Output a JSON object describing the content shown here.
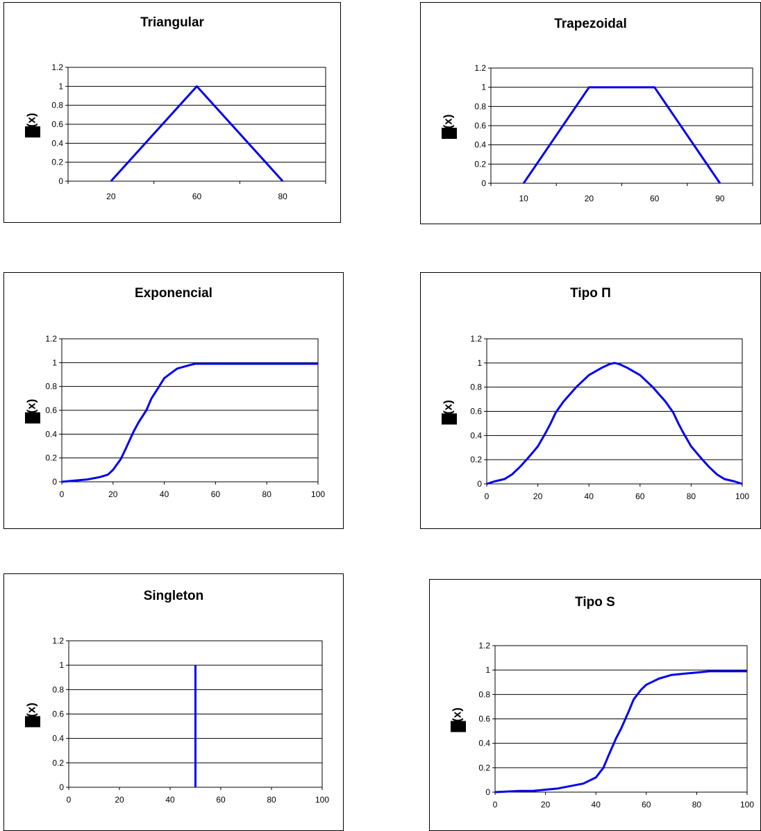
{
  "colors": {
    "line": "#0000ee",
    "frame": "#000000",
    "glyph_block": "#000000"
  },
  "chart_data": [
    {
      "type": "line",
      "title": "Triangular",
      "ylabel": "(x)",
      "ylabel_glyph": "filled-square-icon",
      "x_axis": "categorical",
      "categories": [
        "20",
        "60",
        "80"
      ],
      "y_ticks": [
        "0",
        "0.2",
        "0.4",
        "0.6",
        "0.8",
        "1",
        "1.2"
      ],
      "ylim": [
        0,
        1.2
      ],
      "grid": "horizontal",
      "series": [
        {
          "x_index": [
            0,
            1,
            2
          ],
          "y": [
            0,
            1,
            0
          ]
        }
      ]
    },
    {
      "type": "line",
      "title": "Trapezoidal",
      "ylabel": "(x)",
      "ylabel_glyph": "filled-square-icon",
      "x_axis": "categorical",
      "categories": [
        "10",
        "20",
        "60",
        "90"
      ],
      "y_ticks": [
        "0",
        "0.2",
        "0.4",
        "0.6",
        "0.8",
        "1",
        "1.2"
      ],
      "ylim": [
        0,
        1.2
      ],
      "grid": "horizontal",
      "series": [
        {
          "x_index": [
            0,
            1,
            2,
            3
          ],
          "y": [
            0,
            1,
            1,
            0
          ]
        }
      ]
    },
    {
      "type": "line",
      "title": "Exponencial",
      "ylabel": "(x)",
      "ylabel_glyph": "filled-square-icon",
      "x_axis": "numeric",
      "x_ticks": [
        "0",
        "20",
        "40",
        "60",
        "80",
        "100"
      ],
      "xlim": [
        0,
        100
      ],
      "y_ticks": [
        "0",
        "0.2",
        "0.4",
        "0.6",
        "0.8",
        "1",
        "1.2"
      ],
      "ylim": [
        0,
        1.2
      ],
      "grid": "horizontal",
      "series": [
        {
          "x": [
            0,
            5,
            10,
            15,
            18,
            20,
            23,
            25,
            28,
            30,
            33,
            35,
            38,
            40,
            45,
            50,
            52,
            55,
            60,
            70,
            80,
            90,
            100
          ],
          "y": [
            0,
            0.01,
            0.02,
            0.04,
            0.06,
            0.1,
            0.19,
            0.28,
            0.42,
            0.5,
            0.6,
            0.7,
            0.8,
            0.87,
            0.95,
            0.98,
            0.99,
            0.99,
            0.99,
            0.99,
            0.99,
            0.99,
            0.99
          ]
        }
      ]
    },
    {
      "type": "line",
      "title": "Tipo Π",
      "ylabel": "(x)",
      "ylabel_glyph": "filled-square-icon",
      "x_axis": "numeric",
      "x_ticks": [
        "0",
        "20",
        "40",
        "60",
        "80",
        "100"
      ],
      "xlim": [
        0,
        100
      ],
      "y_ticks": [
        "0",
        "0.2",
        "0.4",
        "0.6",
        "0.8",
        "1",
        "1.2"
      ],
      "ylim": [
        0,
        1.2
      ],
      "grid": "horizontal",
      "series": [
        {
          "x": [
            0,
            3,
            7,
            10,
            13,
            16,
            20,
            23,
            25,
            27,
            30,
            35,
            40,
            45,
            48,
            50,
            52,
            55,
            60,
            65,
            70,
            73,
            75,
            77,
            80,
            84,
            87,
            90,
            93,
            97,
            100
          ],
          "y": [
            0,
            0.02,
            0.04,
            0.08,
            0.14,
            0.21,
            0.31,
            0.42,
            0.5,
            0.59,
            0.68,
            0.8,
            0.9,
            0.96,
            0.99,
            1,
            0.99,
            0.96,
            0.9,
            0.8,
            0.68,
            0.59,
            0.5,
            0.42,
            0.31,
            0.21,
            0.14,
            0.08,
            0.04,
            0.02,
            0
          ]
        }
      ]
    },
    {
      "type": "line",
      "title": "Singleton",
      "ylabel": "(x)",
      "ylabel_glyph": "filled-square-icon",
      "x_axis": "numeric",
      "x_ticks": [
        "0",
        "20",
        "40",
        "60",
        "80",
        "100"
      ],
      "xlim": [
        0,
        100
      ],
      "y_ticks": [
        "0",
        "0.2",
        "0.4",
        "0.6",
        "0.8",
        "1",
        "1.2"
      ],
      "ylim": [
        0,
        1.2
      ],
      "grid": "horizontal",
      "series": [
        {
          "x": [
            50,
            50
          ],
          "y": [
            0,
            1
          ]
        }
      ]
    },
    {
      "type": "line",
      "title": "Tipo S",
      "ylabel": "(x)",
      "ylabel_glyph": "filled-square-icon",
      "x_axis": "numeric",
      "x_ticks": [
        "0",
        "20",
        "40",
        "60",
        "80",
        "100"
      ],
      "xlim": [
        0,
        100
      ],
      "y_ticks": [
        "0",
        "0.2",
        "0.4",
        "0.6",
        "0.8",
        "1",
        "1.2"
      ],
      "ylim": [
        0,
        1.2
      ],
      "grid": "horizontal",
      "series": [
        {
          "x": [
            0,
            5,
            10,
            15,
            20,
            25,
            30,
            35,
            40,
            43,
            45,
            48,
            50,
            53,
            55,
            58,
            60,
            65,
            70,
            75,
            80,
            85,
            90,
            95,
            100
          ],
          "y": [
            0,
            0.005,
            0.01,
            0.01,
            0.02,
            0.03,
            0.05,
            0.07,
            0.12,
            0.2,
            0.3,
            0.44,
            0.52,
            0.66,
            0.76,
            0.84,
            0.88,
            0.93,
            0.96,
            0.97,
            0.98,
            0.99,
            0.99,
            0.99,
            0.99
          ]
        }
      ]
    }
  ]
}
